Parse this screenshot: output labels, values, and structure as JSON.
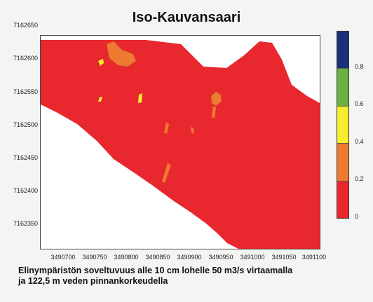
{
  "title": "Iso-Kauvansaari",
  "map": {
    "x_ticks": [
      "3490700",
      "3490750",
      "3490800",
      "3490850",
      "3490900",
      "3490950",
      "3491000",
      "3491050",
      "3491100"
    ],
    "y_ticks": [
      "7162650",
      "7162600",
      "7162550",
      "7162500",
      "7162450",
      "7162400",
      "7162350"
    ],
    "x_range": [
      3490660,
      3491100
    ],
    "y_range": [
      7162350,
      7162680
    ]
  },
  "legend": {
    "tick_labels": [
      "0.8",
      "0.6",
      "0.4",
      "0.2",
      "0"
    ],
    "classes": [
      {
        "range": "0.8-1.0",
        "color": "#1b2f7a"
      },
      {
        "range": "0.6-0.8",
        "color": "#6ab042"
      },
      {
        "range": "0.4-0.6",
        "color": "#f5ee2e"
      },
      {
        "range": "0.2-0.4",
        "color": "#ef7a33"
      },
      {
        "range": "0-0.2",
        "color": "#e8282e"
      }
    ]
  },
  "caption": {
    "line1": "Elinympäristön soveltuvuus alle 10 cm lohelle 50 m3/s virtaamalla",
    "line2": "ja 122,5 m veden pinnankorkeudella"
  }
}
